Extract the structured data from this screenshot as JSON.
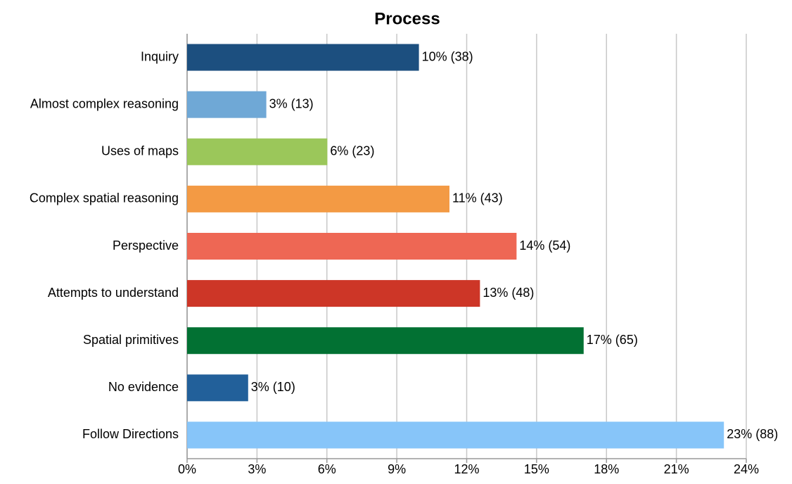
{
  "chart_data": {
    "type": "bar",
    "orientation": "horizontal",
    "title": "Process",
    "categories": [
      "Inquiry",
      "Almost complex reasoning",
      "Uses of maps",
      "Complex spatial reasoning",
      "Perspective",
      "Attempts to understand",
      "Spatial primitives",
      "No evidence",
      "Follow Directions"
    ],
    "values": [
      9.95,
      3.4,
      6.02,
      11.26,
      14.14,
      12.57,
      17.02,
      2.62,
      23.04
    ],
    "value_labels": [
      "10% (38)",
      "3% (13)",
      "6% (23)",
      "11% (43)",
      "14% (54)",
      "13% (48)",
      "17% (65)",
      "3% (10)",
      "23% (88)"
    ],
    "colors": [
      "#1c4f7f",
      "#6fa8d6",
      "#9bc75a",
      "#f39a44",
      "#ee6754",
      "#cd3627",
      "#027133",
      "#22609a",
      "#87c5f9"
    ],
    "xlim": [
      0,
      24
    ],
    "xticks": [
      {
        "value": 0,
        "label": "0%"
      },
      {
        "value": 3,
        "label": "3%"
      },
      {
        "value": 6,
        "label": "6%"
      },
      {
        "value": 9,
        "label": "9%"
      },
      {
        "value": 12,
        "label": "12%"
      },
      {
        "value": 15,
        "label": "15%"
      },
      {
        "value": 18,
        "label": "18%"
      },
      {
        "value": 21,
        "label": "21%"
      },
      {
        "value": 24,
        "label": "24%"
      }
    ],
    "grid": true
  }
}
